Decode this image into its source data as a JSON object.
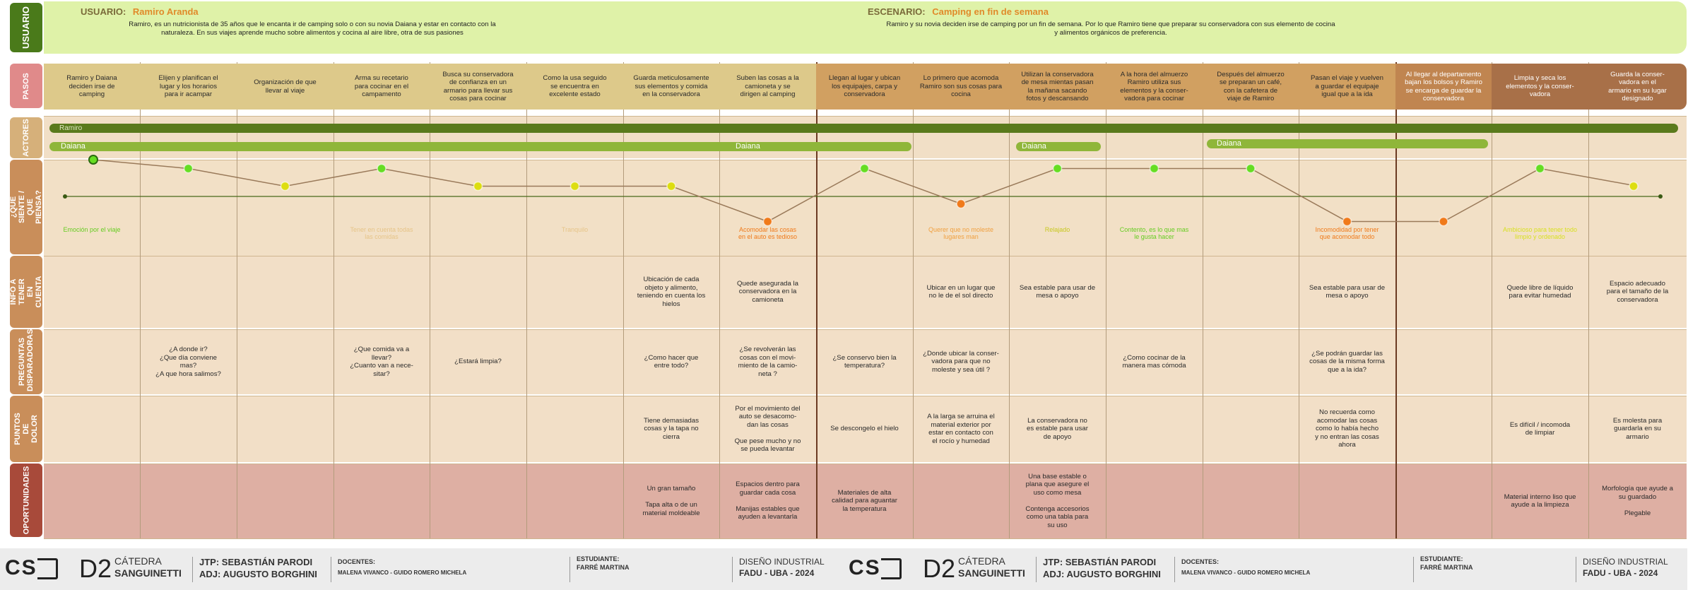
{
  "header": {
    "user_label": "USUARIO:",
    "user_name": "Ramiro Aranda",
    "user_description": "Ramiro, es un nutricionista de 35 años que le encanta ir de camping solo o con su novia Daiana y estar en contacto con la naturaleza. En sus viajes aprende mucho sobre alimentos y cocina al aire libre, otra de sus pasiones",
    "scenario_label": "ESCENARIO:",
    "scenario_name": "Camping en fin de semana",
    "scenario_description": "Ramiro y su novia deciden irse de camping por un fin de semana. Por lo que Ramiro tiene que preparar su conservadora con sus elemento de cocina y alimentos orgánicos de preferencia."
  },
  "row_labels": {
    "usuario": "USUARIO",
    "pasos": "PASOS",
    "actores": "ACTORES",
    "siente": "¿QUE SIENTE / QUE PIENSA?",
    "info": "INFO A TENER EN CUENTA",
    "preguntas": "PREGUNTAS DISPARADORAS",
    "dolor": "PUNTOS DE DOLOR",
    "oportunidades": "OPORTUNIDADES"
  },
  "steps": [
    "Ramiro y Daiana\ndeciden irse de\ncamping",
    "Elijen y planifican el\nlugar y los horarios\npara ir acampar",
    "Organización de que\nllevar al viaje",
    "Arma su recetario\npara cocinar en el\ncampamento",
    "Busca su conservadora\nde confianza en un\narmario para llevar sus\ncosas para cocinar",
    "Como la usa seguido\nse encuentra en\nexcelente estado",
    "Guarda meticulosamente\nsus elementos y comida\nen la conservadora",
    "Suben las cosas a la\ncamioneta y se\ndirigen al camping",
    "Llegan al lugar y ubican\nlos equipajes, carpa y\nconservadora",
    "Lo primero que acomoda\nRamiro son sus cosas para\ncocina",
    "Utilizan la conservadora\nde mesa mientas pasan\nla mañana sacando\nfotos y descansando",
    "A la hora del almuerzo\nRamiro utiliza sus\nelementos y la conser-\nvadora para cocinar",
    "Después del almuerzo\nse preparan un café,\ncon la cafetera de\nviaje de Ramiro",
    "Pasan el viaje y vuelven\na guardar el equipaje\nigual que a la ida",
    "Al llegar al departamento\nbajan los bolsos y Ramiro\nse encarga de guardar la\nconservadora",
    "Limpia y seca los\nelementos y la conser-\nvadora",
    "Guarda la conser-\nvadora en el\narmario en su lugar\ndesignado"
  ],
  "actors": {
    "ramiro": "Ramiro",
    "daiana": "Daiana"
  },
  "emotions": [
    "Emoción por el viaje",
    "",
    "",
    "Tener en cuenta todas\nlas comidas",
    "",
    "Tranquilo",
    "",
    "Acomodar las cosas\nen el auto es tedioso",
    "",
    "Querer que no moleste\nlugares man",
    "Relajado",
    "Contento, es lo que mas\nle gusta hacer",
    "",
    "Incomodidad por tener\nque acomodar todo",
    "",
    "Ambicioso para tener todo\nlimpio y ordenado",
    ""
  ],
  "emotion_levels": [
    4,
    3,
    1,
    3,
    1,
    1,
    1,
    -3,
    3,
    -1,
    3,
    3,
    3,
    -3,
    -3,
    3,
    1
  ],
  "info": [
    "",
    "",
    "",
    "",
    "",
    "",
    "Ubicación de cada\nobjeto y alimento,\nteniendo en cuenta los\nhielos",
    "Quede asegurada la\nconservadora en la\ncamioneta",
    "",
    "Ubicar en un lugar que\nno le de el sol directo",
    "Sea estable para usar de\nmesa o apoyo",
    "",
    "",
    "Sea estable para usar de\nmesa o apoyo",
    "",
    "Quede libre de líquido\npara evitar humedad",
    "Espacio adecuado\npara el tamaño de la\nconservadora"
  ],
  "questions": [
    "",
    "¿A donde ir?\n¿Que día conviene\nmas?\n¿A que hora salimos?",
    "",
    "¿Que comida va a\nllevar?\n¿Cuanto van a nece-\nsitar?",
    "¿Estará limpia?",
    "",
    "¿Como hacer que\nentre todo?",
    "¿Se revolverán las\ncosas con el movi-\nmiento de la camio-\nneta ?",
    "¿Se conservo bien la\ntemperatura?",
    "¿Donde ubicar la conser-\nvadora para que no\nmoleste y sea útil ?",
    "",
    "¿Como cocinar de la\nmanera mas cómoda",
    "",
    "¿Se podrán guardar las\ncosas de la misma forma\nque a la ida?",
    "",
    "",
    ""
  ],
  "pain_points": [
    "",
    "",
    "",
    "",
    "",
    "",
    "Tiene demasiadas\ncosas y la tapa no\ncierra",
    "Por el movimiento del\nauto se desacomo-\ndan las cosas\n\nQue pese mucho y no\nse pueda levantar",
    "Se descongelo el hielo",
    "A la larga se arruina el\nmaterial exterior por\nestar en contacto con\nel rocío  y humedad",
    "La conservadora no\nes estable para usar\nde apoyo",
    "",
    "",
    "No recuerda como\nacomodar las cosas\ncomo lo había hecho\ny no entran las cosas\nahora",
    "",
    "Es difícil / incomoda\nde limpiar",
    "Es molesta para\nguardarla en su\narmario"
  ],
  "opportunities": [
    "",
    "",
    "",
    "",
    "",
    "",
    "Un gran tamaño\n\nTapa alta o de un\nmaterial moldeable",
    "Espacios dentro para\nguardar cada cosa\n\nManijas estables que\nayuden a levantarla",
    "Materiales de alta\ncalidad para aguantar\nla temperatura",
    "",
    "Una base estable o\nplana que asegure el\nuso como mesa\n\nContenga accesorios\ncomo una tabla para\nsu uso",
    "",
    "",
    "",
    "",
    "Material interno liso que\nayude a la limpieza",
    "Morfología que ayude a\nsu guardado\n\nPlegable"
  ],
  "footer": {
    "logo_text": "CS",
    "course_code": "D2",
    "catedra_label": "CÁTEDRA",
    "catedra_name": "SANGUINETTI",
    "jtp": "JTP: SEBASTIÁN PARODI",
    "adj": "ADJ: AUGUSTO BORGHINI",
    "docentes_label": "DOCENTES:",
    "docentes": "MALENA VIVANCO - GUIDO ROMERO MICHELA",
    "estudiante_label": "ESTUDIANTE:",
    "estudiante": "FARRÉ MARTINA",
    "carrera": "DISEÑO INDUSTRIAL",
    "institucion": "FADU - UBA - 2024"
  },
  "colors": {
    "usuario_label": "#4a7a1a",
    "pasos_label": "#e08a8a",
    "actores_label": "#d6b07a",
    "rows_label": "#c98e5a",
    "oportunidades_label": "#a84a3a",
    "ramiro_bar": "#5a7a1c",
    "daiana_bar": "#8fb63a",
    "emotion_line": "#9a7a5a",
    "positive": "#66dd22",
    "neutral": "#dddd11",
    "negative": "#f07a1a"
  }
}
